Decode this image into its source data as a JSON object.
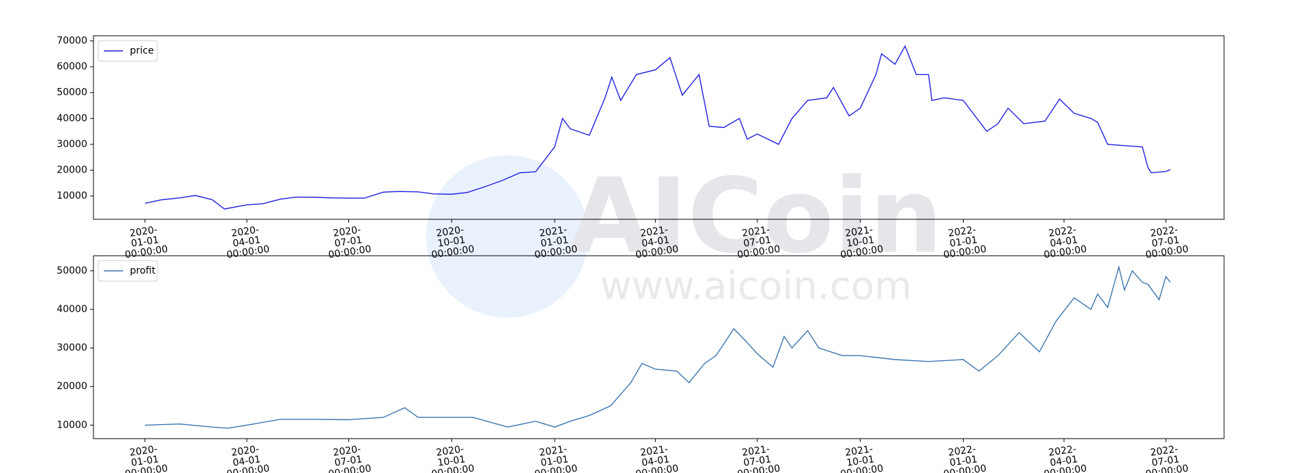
{
  "watermark": {
    "brand": "AICoin",
    "url": "www.aicoin.com"
  },
  "chart_data": [
    {
      "type": "line",
      "legend": "upper left",
      "xlim": [
        "2019-11-16",
        "2022-08-22"
      ],
      "xticks": [
        "2020-01-01 00:00:00",
        "2020-04-01 00:00:00",
        "2020-07-01 00:00:00",
        "2020-10-01 00:00:00",
        "2021-01-01 00:00:00",
        "2021-04-01 00:00:00",
        "2021-07-01 00:00:00",
        "2021-10-01 00:00:00",
        "2022-01-01 00:00:00",
        "2022-04-01 00:00:00",
        "2022-07-01 00:00:00"
      ],
      "ylim": [
        1000,
        72000
      ],
      "yticks": [
        10000,
        20000,
        30000,
        40000,
        50000,
        60000,
        70000
      ],
      "x": [
        "2020-01-01",
        "2020-01-15",
        "2020-02-01",
        "2020-02-15",
        "2020-03-01",
        "2020-03-12",
        "2020-04-01",
        "2020-04-15",
        "2020-05-01",
        "2020-05-15",
        "2020-06-01",
        "2020-06-15",
        "2020-07-01",
        "2020-07-15",
        "2020-08-01",
        "2020-08-15",
        "2020-09-01",
        "2020-09-15",
        "2020-10-01",
        "2020-10-15",
        "2020-11-01",
        "2020-11-15",
        "2020-12-01",
        "2020-12-15",
        "2021-01-01",
        "2021-01-08",
        "2021-01-15",
        "2021-02-01",
        "2021-02-15",
        "2021-02-21",
        "2021-03-01",
        "2021-03-15",
        "2021-04-01",
        "2021-04-14",
        "2021-04-25",
        "2021-05-10",
        "2021-05-19",
        "2021-06-01",
        "2021-06-15",
        "2021-06-22",
        "2021-07-01",
        "2021-07-20",
        "2021-08-01",
        "2021-08-15",
        "2021-09-01",
        "2021-09-07",
        "2021-09-21",
        "2021-10-01",
        "2021-10-15",
        "2021-10-20",
        "2021-11-01",
        "2021-11-10",
        "2021-11-20",
        "2021-12-01",
        "2021-12-04",
        "2021-12-15",
        "2022-01-01",
        "2022-01-22",
        "2022-02-01",
        "2022-02-10",
        "2022-02-24",
        "2022-03-15",
        "2022-03-28",
        "2022-04-10",
        "2022-04-25",
        "2022-05-01",
        "2022-05-10",
        "2022-05-25",
        "2022-06-10",
        "2022-06-15",
        "2022-06-18",
        "2022-07-01",
        "2022-07-05"
      ],
      "series": [
        {
          "name": "price",
          "color": "#1f1fe0",
          "values": [
            7200,
            8500,
            9300,
            10200,
            8600,
            5000,
            6600,
            7000,
            8800,
            9600,
            9500,
            9300,
            9200,
            9200,
            11500,
            11800,
            11600,
            10800,
            10700,
            11400,
            13800,
            16000,
            19000,
            19400,
            29000,
            40000,
            36000,
            33500,
            48000,
            56000,
            47000,
            57000,
            58800,
            63500,
            49000,
            57000,
            37000,
            36500,
            40000,
            32000,
            34000,
            30000,
            40000,
            47000,
            48000,
            52000,
            41000,
            44000,
            57000,
            65000,
            61000,
            68000,
            57000,
            57000,
            47000,
            48000,
            47000,
            35000,
            38000,
            44000,
            38000,
            39000,
            47500,
            42000,
            40000,
            38500,
            30000,
            29500,
            29000,
            21000,
            19000,
            19500,
            20200
          ]
        }
      ]
    },
    {
      "type": "line",
      "legend": "upper left",
      "xlim": [
        "2019-11-16",
        "2022-08-22"
      ],
      "xticks": [
        "2020-01-01 00:00:00",
        "2020-04-01 00:00:00",
        "2020-07-01 00:00:00",
        "2020-10-01 00:00:00",
        "2021-01-01 00:00:00",
        "2021-04-01 00:00:00",
        "2021-07-01 00:00:00",
        "2021-10-01 00:00:00",
        "2022-01-01 00:00:00",
        "2022-04-01 00:00:00",
        "2022-07-01 00:00:00"
      ],
      "ylim": [
        6500,
        53900
      ],
      "yticks": [
        10000,
        20000,
        30000,
        40000,
        50000
      ],
      "x": [
        "2020-01-01",
        "2020-02-01",
        "2020-03-01",
        "2020-03-15",
        "2020-04-01",
        "2020-05-01",
        "2020-06-01",
        "2020-07-01",
        "2020-08-01",
        "2020-08-20",
        "2020-09-01",
        "2020-10-01",
        "2020-10-20",
        "2020-11-20",
        "2020-12-15",
        "2021-01-01",
        "2021-01-15",
        "2021-02-01",
        "2021-02-20",
        "2021-03-10",
        "2021-03-20",
        "2021-04-01",
        "2021-04-20",
        "2021-05-01",
        "2021-05-15",
        "2021-05-25",
        "2021-06-01",
        "2021-06-10",
        "2021-06-20",
        "2021-07-01",
        "2021-07-15",
        "2021-07-25",
        "2021-08-01",
        "2021-08-15",
        "2021-08-25",
        "2021-09-15",
        "2021-10-01",
        "2021-11-01",
        "2021-12-01",
        "2022-01-01",
        "2022-01-15",
        "2022-02-01",
        "2022-02-20",
        "2022-03-10",
        "2022-03-25",
        "2022-04-10",
        "2022-04-25",
        "2022-05-01",
        "2022-05-10",
        "2022-05-20",
        "2022-05-25",
        "2022-06-01",
        "2022-06-10",
        "2022-06-15",
        "2022-06-25",
        "2022-07-01",
        "2022-07-05"
      ],
      "series": [
        {
          "name": "profit",
          "color": "#3a75ae",
          "values": [
            10000,
            10300,
            9500,
            9200,
            10000,
            11500,
            11500,
            11400,
            12000,
            14500,
            12000,
            12000,
            12000,
            9500,
            11000,
            9500,
            11000,
            12500,
            15000,
            21000,
            26000,
            24500,
            24000,
            21000,
            26000,
            28000,
            31000,
            35000,
            32000,
            28500,
            25000,
            33000,
            30000,
            34500,
            30000,
            28000,
            28000,
            27000,
            26500,
            27000,
            24000,
            28000,
            34000,
            29000,
            37000,
            43000,
            40000,
            44000,
            40500,
            51000,
            45000,
            50000,
            47000,
            46500,
            42500,
            48500,
            47000
          ]
        }
      ]
    }
  ]
}
